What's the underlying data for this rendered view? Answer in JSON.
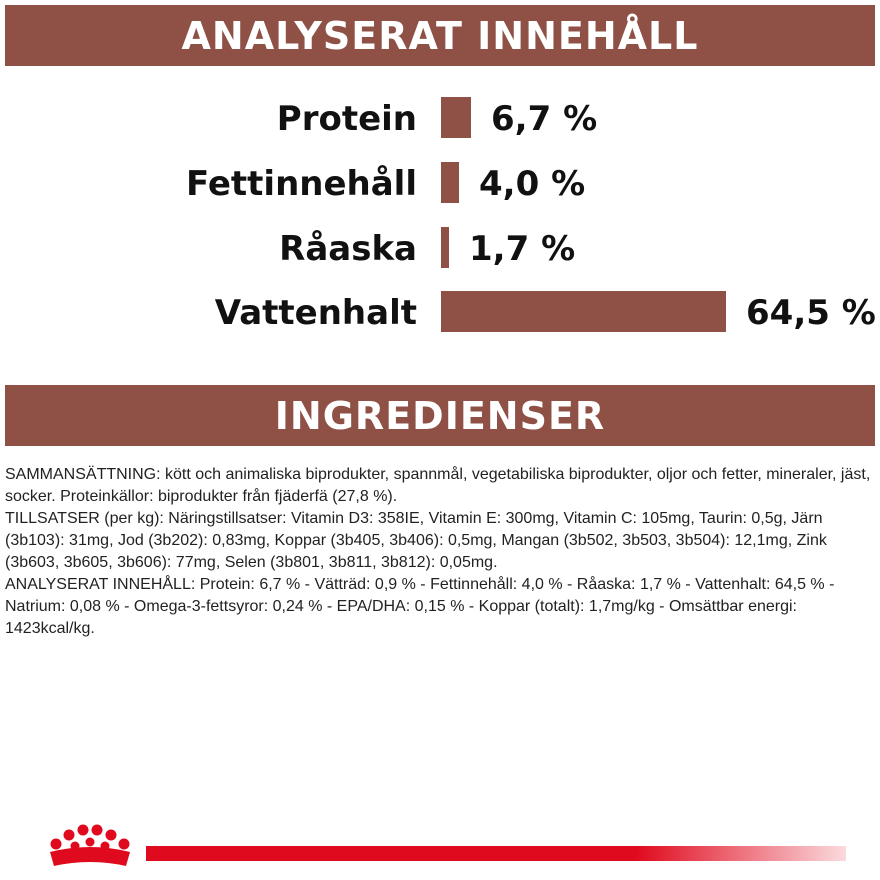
{
  "analysis": {
    "title": "ANALYSERAT INNEHÅLL",
    "bar_color": "#8f5045",
    "rows": [
      {
        "label": "Protein",
        "value_text": "6,7 %",
        "percent": 6.7
      },
      {
        "label": "Fettinnehåll",
        "value_text": "4,0 %",
        "percent": 4.0
      },
      {
        "label": "Råaska",
        "value_text": "1,7 %",
        "percent": 1.7
      },
      {
        "label": "Vattenhalt",
        "value_text": "64,5 %",
        "percent": 64.5
      }
    ]
  },
  "ingredients": {
    "title": "INGREDIENSER",
    "paragraphs": [
      "SAMMANSÄTTNING: kött och animaliska biprodukter, spannmål, vegetabiliska biprodukter, oljor och fetter, mineraler, jäst, socker. Proteinkällor: biprodukter från fjäderfä (27,8 %).",
      "TILLSATSER (per kg): Näringstillsatser: Vitamin D3: 358IE, Vitamin E: 300mg, Vitamin C: 105mg, Taurin: 0,5g, Järn (3b103): 31mg, Jod (3b202): 0,83mg, Koppar (3b405, 3b406): 0,5mg, Mangan (3b502, 3b503, 3b504): 12,1mg, Zink (3b603, 3b605, 3b606): 77mg, Selen (3b801, 3b811, 3b812): 0,05mg.",
      "ANALYSERAT INNEHÅLL: Protein: 6,7 % - Vätträd: 0,9 % - Fettinnehåll: 4,0 % - Råaska: 1,7 % - Vattenhalt: 64,5 % - Natrium: 0,08 % - Omega-3-fettsyror: 0,24 % - EPA/DHA: 0,15 % - Koppar (totalt): 1,7mg/kg - Omsättbar energi: 1423kcal/kg."
    ]
  },
  "footer": {
    "logo_icon": "crown-icon",
    "accent_color": "#e00a1e"
  }
}
